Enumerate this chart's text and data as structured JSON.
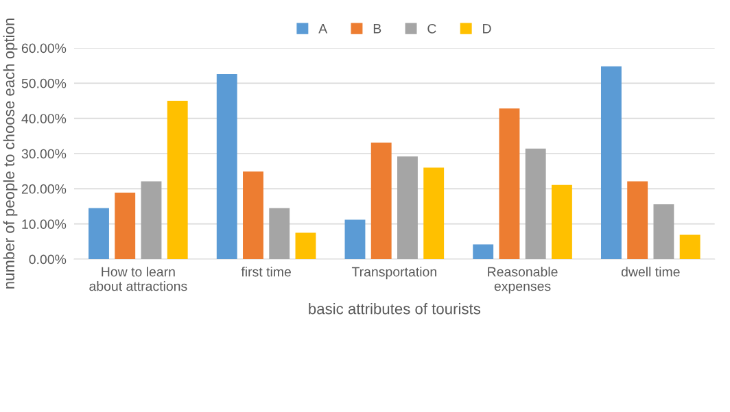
{
  "chart_data": {
    "type": "bar",
    "xlabel": "basic attributes of tourists",
    "ylabel": "number of people to choose each option",
    "categories": [
      "How to learn\nabout attractions",
      "first time",
      "Transportation",
      "Reasonable\nexpenses",
      "dwell time"
    ],
    "series": [
      {
        "name": "A",
        "color": "#5b9bd5",
        "values": [
          14.5,
          52.6,
          11.2,
          4.2,
          54.8
        ]
      },
      {
        "name": "B",
        "color": "#ed7d31",
        "values": [
          18.9,
          24.9,
          33.1,
          42.8,
          22.1
        ]
      },
      {
        "name": "C",
        "color": "#a5a5a5",
        "values": [
          22.1,
          14.5,
          29.2,
          31.4,
          15.6
        ]
      },
      {
        "name": "D",
        "color": "#ffc000",
        "values": [
          45.0,
          7.5,
          26.0,
          21.1,
          6.9
        ]
      }
    ],
    "ylim": [
      0,
      60
    ],
    "yticks": [
      {
        "value": 0,
        "label": "0.00%"
      },
      {
        "value": 10,
        "label": "10.00%"
      },
      {
        "value": 20,
        "label": "20.00%"
      },
      {
        "value": 30,
        "label": "30.00%"
      },
      {
        "value": 40,
        "label": "40.00%"
      },
      {
        "value": 50,
        "label": "50.00%"
      },
      {
        "value": 60,
        "label": "60.00%"
      }
    ],
    "grid": "y",
    "legend": "top"
  }
}
